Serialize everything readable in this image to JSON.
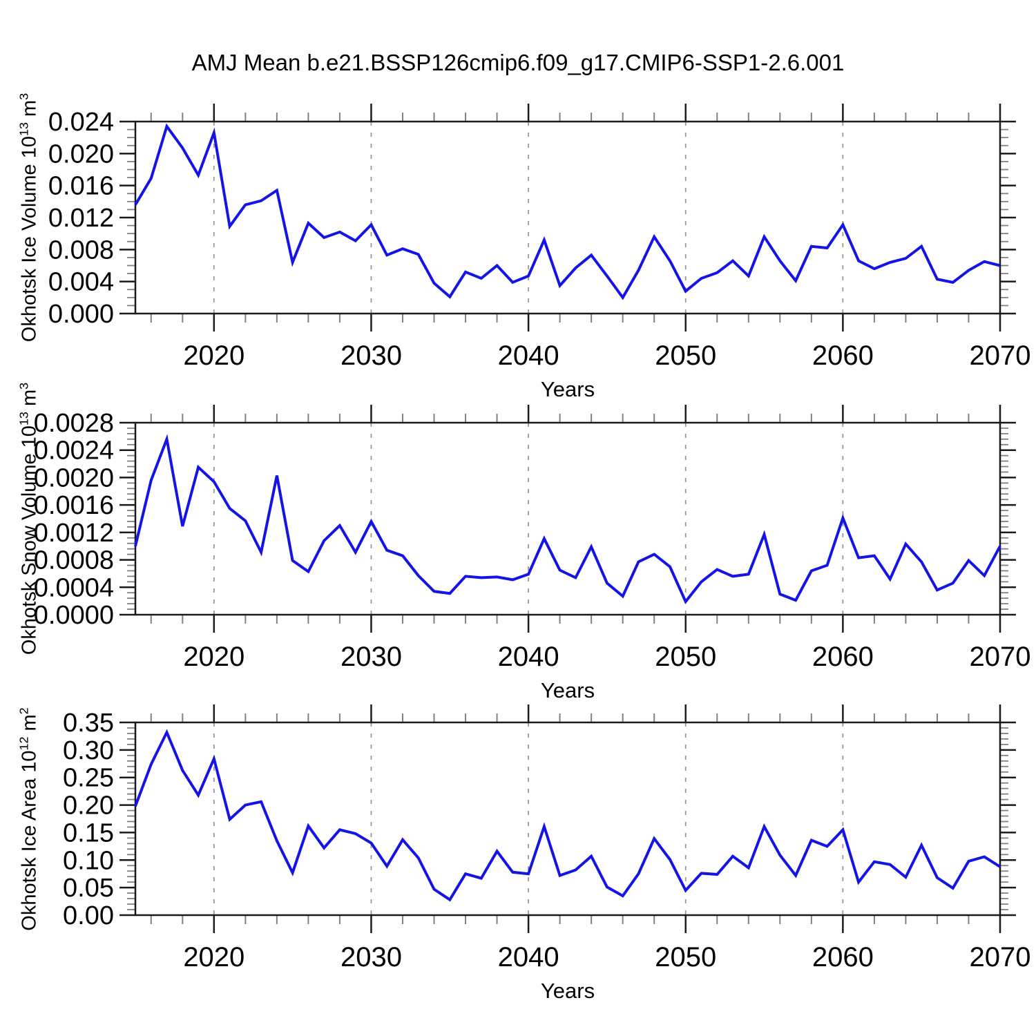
{
  "title": "AMJ Mean b.e21.BSSP126cmip6.f09_g17.CMIP6-SSP1-2.6.001",
  "x_axis_label": "Years",
  "line_color": "#1414e6",
  "grid_color": "#999999",
  "axis_color": "#1a1a1a",
  "minor_tick_color": "#808080",
  "x_tick_years": [
    2020,
    2030,
    2040,
    2050,
    2060,
    2070
  ],
  "x_range": [
    2015,
    2070
  ],
  "years": [
    2015,
    2016,
    2017,
    2018,
    2019,
    2020,
    2021,
    2022,
    2023,
    2024,
    2025,
    2026,
    2027,
    2028,
    2029,
    2030,
    2031,
    2032,
    2033,
    2034,
    2035,
    2036,
    2037,
    2038,
    2039,
    2040,
    2041,
    2042,
    2043,
    2044,
    2045,
    2046,
    2047,
    2048,
    2049,
    2050,
    2051,
    2052,
    2053,
    2054,
    2055,
    2056,
    2057,
    2058,
    2059,
    2060,
    2061,
    2062,
    2063,
    2064,
    2065,
    2066,
    2067,
    2068,
    2069,
    2070
  ],
  "chart_data": [
    {
      "type": "line",
      "name": "okhotsk-ice-volume",
      "ylabel_plain": "Okhotsk Ice Volume 10^13 m^3",
      "ylabel_segments": [
        {
          "text": "Okhotsk Ice Volume 10",
          "sup": false
        },
        {
          "text": "13",
          "sup": true
        },
        {
          "text": " m",
          "sup": false
        },
        {
          "text": "3",
          "sup": true
        }
      ],
      "xlabel": "Years",
      "ylim": [
        0,
        0.024
      ],
      "ytick_step": 0.004,
      "ytick_decimals": 3,
      "y_minor_divisions": 4,
      "grid": "vertical-dashed",
      "legend": "none",
      "values": [
        0.0136,
        0.0169,
        0.0234,
        0.0207,
        0.0173,
        0.0226,
        0.0109,
        0.0136,
        0.0141,
        0.0154,
        0.0064,
        0.0113,
        0.0095,
        0.0102,
        0.0091,
        0.0111,
        0.0073,
        0.0081,
        0.0074,
        0.0038,
        0.0021,
        0.0052,
        0.0044,
        0.006,
        0.0039,
        0.0047,
        0.0092,
        0.0035,
        0.0057,
        0.0073,
        0.0047,
        0.002,
        0.0054,
        0.0096,
        0.0066,
        0.0028,
        0.0044,
        0.0051,
        0.0066,
        0.0047,
        0.0096,
        0.0066,
        0.0041,
        0.0084,
        0.0082,
        0.0111,
        0.0066,
        0.0056,
        0.0064,
        0.0069,
        0.0084,
        0.0043,
        0.0039,
        0.0054,
        0.0065,
        0.006
      ]
    },
    {
      "type": "line",
      "name": "okhotsk-snow-volume",
      "ylabel_plain": "Okhotsk Snow Volume 10^13 m^3",
      "ylabel_segments": [
        {
          "text": "Okhotsk Snow Volume 10",
          "sup": false
        },
        {
          "text": "13",
          "sup": true
        },
        {
          "text": " m",
          "sup": false
        },
        {
          "text": "3",
          "sup": true
        }
      ],
      "xlabel": "Years",
      "ylim": [
        0,
        0.0028
      ],
      "ytick_step": 0.0004,
      "ytick_decimals": 4,
      "y_minor_divisions": 5,
      "grid": "vertical-dashed",
      "legend": "none",
      "values": [
        0.001,
        0.00196,
        0.00256,
        0.00129,
        0.00215,
        0.00194,
        0.00155,
        0.00137,
        0.00091,
        0.00203,
        0.00079,
        0.00063,
        0.00108,
        0.0013,
        0.00091,
        0.00136,
        0.00094,
        0.00086,
        0.00057,
        0.00034,
        0.00031,
        0.00056,
        0.00054,
        0.00055,
        0.00051,
        0.00059,
        0.00111,
        0.00065,
        0.00054,
        0.00099,
        0.00046,
        0.00027,
        0.00077,
        0.00088,
        0.0007,
        0.00019,
        0.00048,
        0.00066,
        0.00056,
        0.00059,
        0.00117,
        0.0003,
        0.00021,
        0.00064,
        0.00072,
        0.00141,
        0.00083,
        0.00086,
        0.00052,
        0.00103,
        0.00077,
        0.00036,
        0.00046,
        0.00079,
        0.00057,
        0.001
      ]
    },
    {
      "type": "line",
      "name": "okhotsk-ice-area",
      "ylabel_plain": "Okhotsk Ice Area 10^12 m^2",
      "ylabel_segments": [
        {
          "text": "Okhotsk Ice Area 10",
          "sup": false
        },
        {
          "text": "12",
          "sup": true
        },
        {
          "text": " m",
          "sup": false
        },
        {
          "text": "2",
          "sup": true
        }
      ],
      "xlabel": "Years",
      "ylim": [
        0,
        0.35
      ],
      "ytick_step": 0.05,
      "ytick_decimals": 2,
      "y_minor_divisions": 5,
      "grid": "vertical-dashed",
      "legend": "none",
      "values": [
        0.198,
        0.274,
        0.332,
        0.263,
        0.218,
        0.284,
        0.174,
        0.2,
        0.206,
        0.135,
        0.077,
        0.162,
        0.122,
        0.155,
        0.148,
        0.131,
        0.089,
        0.137,
        0.104,
        0.047,
        0.028,
        0.075,
        0.067,
        0.116,
        0.078,
        0.075,
        0.161,
        0.072,
        0.082,
        0.107,
        0.051,
        0.035,
        0.075,
        0.139,
        0.101,
        0.045,
        0.076,
        0.074,
        0.107,
        0.086,
        0.161,
        0.109,
        0.072,
        0.136,
        0.125,
        0.155,
        0.06,
        0.097,
        0.092,
        0.069,
        0.127,
        0.068,
        0.049,
        0.098,
        0.106,
        0.088
      ]
    }
  ]
}
